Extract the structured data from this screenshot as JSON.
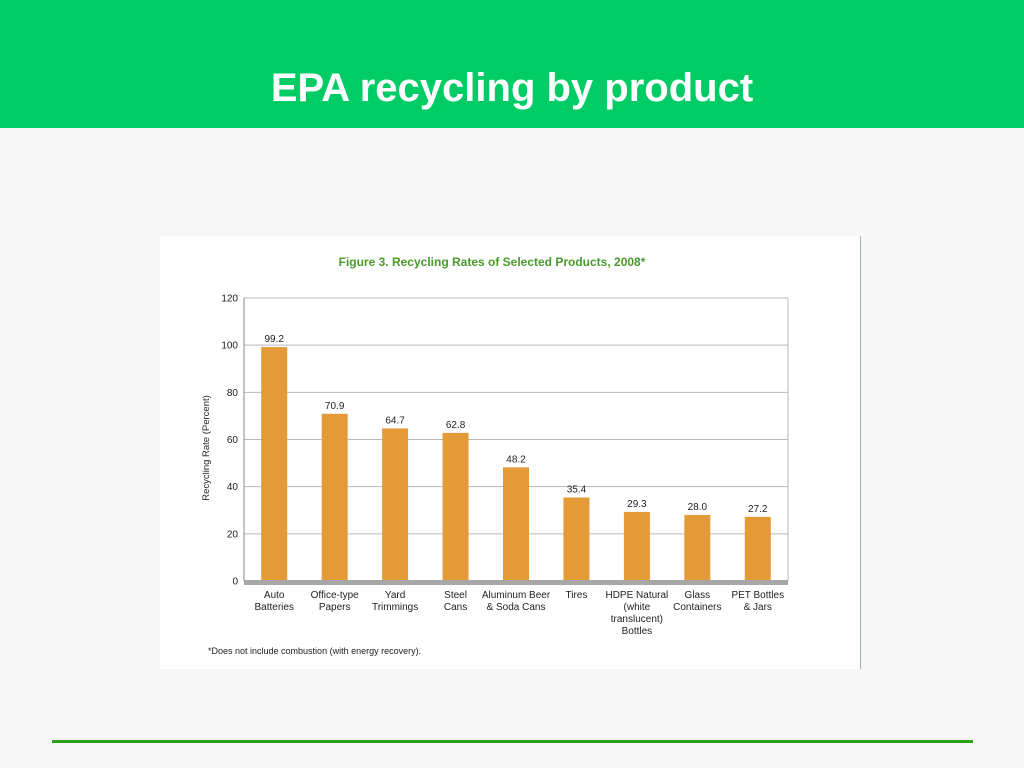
{
  "slide": {
    "title": "EPA recycling by product"
  },
  "colors": {
    "header_bg": "#00cc66",
    "bar": "#e39a37",
    "figure_title": "#4a9a2c",
    "footer_rule": "#2ea01e"
  },
  "chart_data": {
    "type": "bar",
    "title": "Figure 3. Recycling Rates of Selected Products, 2008*",
    "ylabel": "Recycling Rate (Percent)",
    "xlabel": "",
    "ylim": [
      0,
      120
    ],
    "yticks": [
      0,
      20,
      40,
      60,
      80,
      100,
      120
    ],
    "grid": true,
    "categories": [
      [
        "Auto",
        "Batteries"
      ],
      [
        "Office-type",
        "Papers"
      ],
      [
        "Yard",
        "Trimmings"
      ],
      [
        "Steel",
        "Cans"
      ],
      [
        "Aluminum Beer",
        "& Soda Cans"
      ],
      [
        "Tires"
      ],
      [
        "HDPE Natural",
        "(white",
        "translucent)",
        "Bottles"
      ],
      [
        "Glass",
        "Containers"
      ],
      [
        "PET Bottles",
        "& Jars"
      ]
    ],
    "values": [
      99.2,
      70.9,
      64.7,
      62.8,
      48.2,
      35.4,
      29.3,
      28.0,
      27.2
    ],
    "value_labels": [
      "99.2",
      "70.9",
      "64.7",
      "62.8",
      "48.2",
      "35.4",
      "29.3",
      "28.0",
      "27.2"
    ],
    "footnote": "*Does not include combustion (with energy recovery)."
  }
}
